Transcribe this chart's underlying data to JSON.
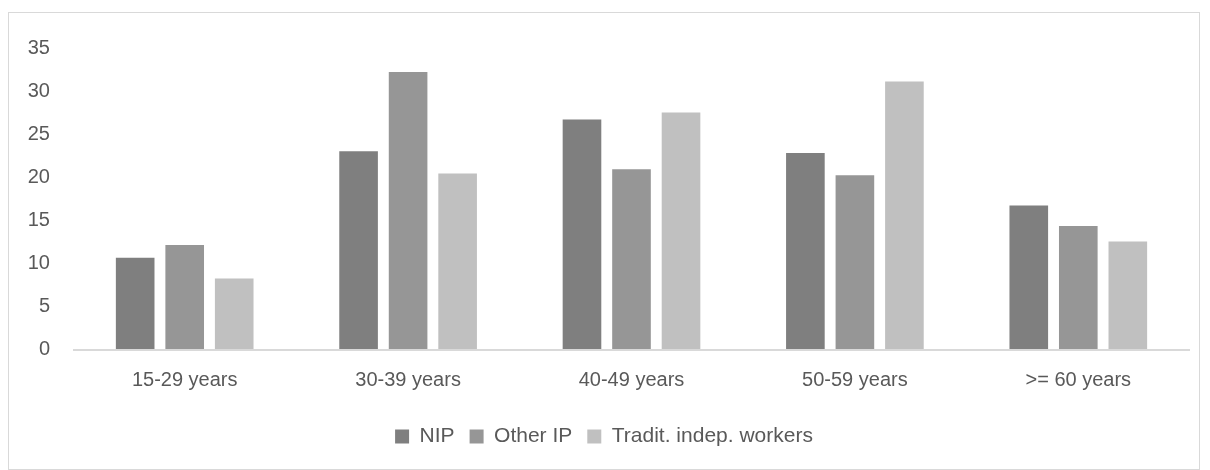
{
  "chart_data": {
    "type": "bar",
    "categories": [
      "15-29 years",
      "30-39 years",
      "40-49 years",
      "50-59 years",
      ">= 60 years"
    ],
    "series": [
      {
        "name": "NIP",
        "color": "#7f7f7f",
        "values": [
          10.6,
          23.0,
          26.7,
          22.8,
          16.7
        ]
      },
      {
        "name": "Other IP",
        "color": "#969696",
        "values": [
          12.1,
          32.2,
          20.9,
          20.2,
          14.3
        ]
      },
      {
        "name": "Tradit. indep. workers",
        "color": "#c0c0c0",
        "values": [
          8.2,
          20.4,
          27.5,
          31.1,
          12.5
        ]
      }
    ],
    "ylim": [
      0,
      35
    ],
    "yticks": [
      0,
      5,
      10,
      15,
      20,
      25,
      30,
      35
    ],
    "grid": false,
    "legend": "bottom"
  }
}
